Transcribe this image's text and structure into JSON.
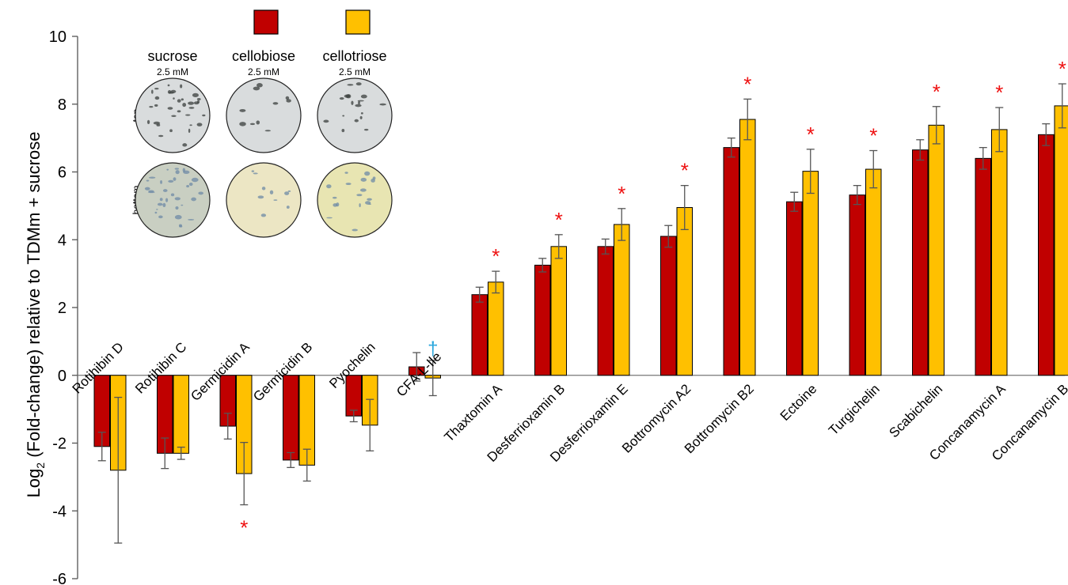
{
  "chart_data": {
    "type": "bar",
    "ylabel_main": "Log",
    "ylabel_sub": "2",
    "ylabel_rest": " (Fold-change) relative to TDMm + sucrose",
    "ylim": [
      -6,
      10
    ],
    "yticks": [
      "10",
      "8",
      "6",
      "4",
      "2",
      "0",
      "-2",
      "-4",
      "-6"
    ],
    "categories": [
      "Rotihibin D",
      "Rotihibin C",
      "Germicidin A",
      "Germicidin B",
      "Pyochelin",
      "CFA-L-Ile",
      "Thaxtomin A",
      "Desferrioxamin B",
      "Desferrioxamin E",
      "Bottromycin A2",
      "Bottromycin B2",
      "Ectoine",
      "Turgichelin",
      "Scabichelin",
      "Concanamycin A",
      "Concanamycin B"
    ],
    "series": [
      {
        "color": "#c00000",
        "values": [
          -2.1,
          -2.3,
          -1.5,
          -2.5,
          -1.2,
          0.25,
          2.38,
          3.25,
          3.8,
          4.1,
          6.72,
          5.12,
          5.32,
          6.65,
          6.4,
          7.1
        ],
        "errors": [
          0.42,
          0.45,
          0.38,
          0.22,
          0.17,
          0.42,
          0.22,
          0.2,
          0.22,
          0.32,
          0.28,
          0.28,
          0.28,
          0.3,
          0.32,
          0.32
        ]
      },
      {
        "color": "#ffc000",
        "values": [
          -2.8,
          -2.3,
          -2.9,
          -2.65,
          -1.47,
          -0.08,
          2.75,
          3.8,
          4.45,
          4.95,
          7.55,
          6.02,
          6.08,
          7.38,
          7.25,
          7.95
        ],
        "errors": [
          2.15,
          0.18,
          0.92,
          0.47,
          0.76,
          0.52,
          0.32,
          0.35,
          0.47,
          0.65,
          0.6,
          0.65,
          0.55,
          0.55,
          0.65,
          0.65
        ]
      }
    ],
    "significance": [
      {
        "category": "Germicidin A",
        "mark": "*",
        "position": "below"
      },
      {
        "category": "CFA-L-Ile",
        "mark": "†",
        "position": "above"
      },
      {
        "category": "Thaxtomin A",
        "mark": "*",
        "position": "above"
      },
      {
        "category": "Desferrioxamin B",
        "mark": "*",
        "position": "above"
      },
      {
        "category": "Desferrioxamin E",
        "mark": "*",
        "position": "above"
      },
      {
        "category": "Bottromycin A2",
        "mark": "*",
        "position": "above"
      },
      {
        "category": "Bottromycin B2",
        "mark": "*",
        "position": "above"
      },
      {
        "category": "Ectoine",
        "mark": "*",
        "position": "above"
      },
      {
        "category": "Turgichelin",
        "mark": "*",
        "position": "above"
      },
      {
        "category": "Scabichelin",
        "mark": "*",
        "position": "above"
      },
      {
        "category": "Concanamycin A",
        "mark": "*",
        "position": "above"
      },
      {
        "category": "Concanamycin B",
        "mark": "*",
        "position": "above"
      }
    ],
    "legend_position": "top-center",
    "grid": false
  },
  "inset": {
    "columns": [
      {
        "name": "sucrose",
        "conc": "2.5 mM"
      },
      {
        "name": "cellobiose",
        "conc": "2.5 mM"
      },
      {
        "name": "cellotriose",
        "conc": "2.5 mM"
      }
    ],
    "rows": [
      "top",
      "bottom"
    ],
    "colors": {
      "top_fill": "#d9dcdd",
      "bottom_sucrose": "#c9cfc2",
      "bottom_cellobiose": "#ece6c4",
      "bottom_cellotriose": "#e8e5b2",
      "colony_dark": "#3a3f3c",
      "colony_blue": "#6d8aa6"
    }
  }
}
